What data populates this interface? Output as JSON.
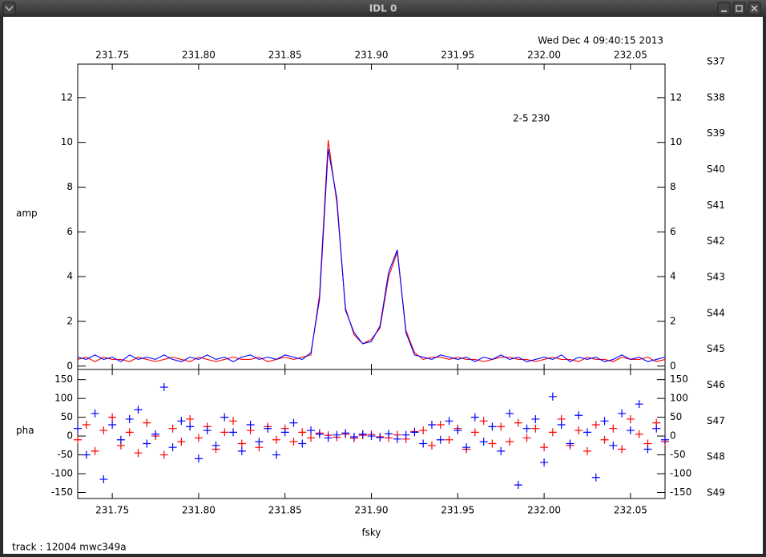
{
  "window": {
    "title": "IDL 0"
  },
  "header": {
    "date": "Wed Dec  4 09:40:15 2013"
  },
  "footer": {
    "track": "track : 12004  mwc349a"
  },
  "channels": [
    {
      "name": "S37",
      "color": "#cc0000"
    },
    {
      "name": "S38",
      "color": "#cc0000"
    },
    {
      "name": "S39",
      "color": "#cc0000"
    },
    {
      "name": "S40",
      "color": "#cc0000"
    },
    {
      "name": "S41",
      "color": "#cc0000"
    },
    {
      "name": "S42",
      "color": "#cc0000"
    },
    {
      "name": "S43",
      "color": "#cc0000"
    },
    {
      "name": "S44",
      "color": "#cc0000"
    },
    {
      "name": "S45",
      "color": "#cc0000"
    },
    {
      "name": "S46",
      "color": "#cc0000"
    },
    {
      "name": "S47",
      "color": "#cc0000"
    },
    {
      "name": "S48",
      "color": "#cc0000"
    },
    {
      "name": "S49",
      "color": "#0000cc"
    }
  ],
  "chart_data": [
    {
      "type": "line",
      "ylabel": "amp",
      "annotation": "2-5 230",
      "xlim": [
        231.73,
        232.07
      ],
      "xticks": [
        231.75,
        {
          "value": 231.8,
          "label": "231.80"
        },
        231.85,
        {
          "value": 231.9,
          "label": "231.90"
        },
        231.95,
        {
          "value": 232.0,
          "label": "232.00"
        },
        232.05
      ],
      "ylim": [
        -0.15,
        13.5
      ],
      "yticks": [
        0,
        2,
        4,
        6,
        8,
        10,
        12
      ],
      "x": [
        231.73,
        231.735,
        231.74,
        231.745,
        231.75,
        231.755,
        231.76,
        231.765,
        231.77,
        231.775,
        231.78,
        231.785,
        231.79,
        231.795,
        231.8,
        231.805,
        231.81,
        231.815,
        231.82,
        231.825,
        231.83,
        231.835,
        231.84,
        231.845,
        231.85,
        231.855,
        231.86,
        231.865,
        231.87,
        231.875,
        231.88,
        231.885,
        231.89,
        231.895,
        231.9,
        231.905,
        231.91,
        231.915,
        231.92,
        231.925,
        231.93,
        231.935,
        231.94,
        231.945,
        231.95,
        231.955,
        231.96,
        231.965,
        231.97,
        231.975,
        231.98,
        231.985,
        231.99,
        231.995,
        232.0,
        232.005,
        232.01,
        232.015,
        232.02,
        232.025,
        232.03,
        232.035,
        232.04,
        232.045,
        232.05,
        232.055,
        232.06,
        232.065,
        232.07
      ],
      "series": [
        {
          "color": "#ff0000",
          "values": [
            0.3,
            0.4,
            0.2,
            0.4,
            0.3,
            0.3,
            0.2,
            0.4,
            0.3,
            0.2,
            0.3,
            0.4,
            0.3,
            0.2,
            0.4,
            0.3,
            0.2,
            0.3,
            0.4,
            0.3,
            0.3,
            0.4,
            0.2,
            0.3,
            0.4,
            0.3,
            0.4,
            0.5,
            3.2,
            10.1,
            7.3,
            2.6,
            1.4,
            1.0,
            1.2,
            1.7,
            4.0,
            5.1,
            1.6,
            0.6,
            0.3,
            0.4,
            0.4,
            0.3,
            0.4,
            0.3,
            0.3,
            0.2,
            0.3,
            0.4,
            0.4,
            0.3,
            0.3,
            0.2,
            0.3,
            0.4,
            0.3,
            0.3,
            0.2,
            0.4,
            0.3,
            0.3,
            0.2,
            0.4,
            0.3,
            0.3,
            0.4,
            0.2,
            0.3
          ]
        },
        {
          "color": "#0000ff",
          "values": [
            0.4,
            0.3,
            0.5,
            0.3,
            0.4,
            0.2,
            0.5,
            0.3,
            0.4,
            0.3,
            0.5,
            0.3,
            0.2,
            0.4,
            0.3,
            0.5,
            0.3,
            0.4,
            0.2,
            0.4,
            0.5,
            0.3,
            0.4,
            0.3,
            0.5,
            0.4,
            0.3,
            0.6,
            3.0,
            9.7,
            7.5,
            2.5,
            1.5,
            1.0,
            1.1,
            1.8,
            4.2,
            5.2,
            1.5,
            0.5,
            0.4,
            0.3,
            0.5,
            0.4,
            0.3,
            0.4,
            0.2,
            0.4,
            0.3,
            0.5,
            0.3,
            0.4,
            0.2,
            0.3,
            0.4,
            0.3,
            0.5,
            0.2,
            0.4,
            0.3,
            0.4,
            0.2,
            0.3,
            0.5,
            0.3,
            0.4,
            0.2,
            0.3,
            0.4
          ]
        }
      ]
    },
    {
      "type": "scatter",
      "ylabel": "pha",
      "xlabel": "fsky",
      "xlim": [
        231.73,
        232.07
      ],
      "xticks": [
        231.75,
        {
          "value": 231.8,
          "label": "231.80"
        },
        231.85,
        {
          "value": 231.9,
          "label": "231.90"
        },
        231.95,
        {
          "value": 232.0,
          "label": "232.00"
        },
        232.05
      ],
      "ylim": [
        -166,
        177
      ],
      "yticks": [
        -150,
        -100,
        -50,
        0,
        50,
        100,
        150
      ],
      "x": [
        231.73,
        231.735,
        231.74,
        231.745,
        231.75,
        231.755,
        231.76,
        231.765,
        231.77,
        231.775,
        231.78,
        231.785,
        231.79,
        231.795,
        231.8,
        231.805,
        231.81,
        231.815,
        231.82,
        231.825,
        231.83,
        231.835,
        231.84,
        231.845,
        231.85,
        231.855,
        231.86,
        231.865,
        231.87,
        231.875,
        231.88,
        231.885,
        231.89,
        231.895,
        231.9,
        231.905,
        231.91,
        231.915,
        231.92,
        231.925,
        231.93,
        231.935,
        231.94,
        231.945,
        231.95,
        231.955,
        231.96,
        231.965,
        231.97,
        231.975,
        231.98,
        231.985,
        231.99,
        231.995,
        232.0,
        232.005,
        232.01,
        232.015,
        232.02,
        232.025,
        232.03,
        232.035,
        232.04,
        232.045,
        232.05,
        232.055,
        232.06,
        232.065,
        232.07
      ],
      "series": [
        {
          "color": "#ff0000",
          "values": [
            -10,
            30,
            -40,
            15,
            50,
            -25,
            10,
            -45,
            35,
            0,
            -50,
            20,
            -15,
            45,
            -5,
            25,
            -35,
            10,
            40,
            -20,
            15,
            -30,
            25,
            -10,
            20,
            -15,
            10,
            -5,
            8,
            2,
            -3,
            5,
            -6,
            2,
            4,
            -2,
            -5,
            3,
            -8,
            12,
            15,
            -25,
            30,
            -10,
            20,
            -35,
            10,
            40,
            -20,
            25,
            -15,
            35,
            -5,
            20,
            -30,
            10,
            45,
            -25,
            15,
            -40,
            30,
            -10,
            20,
            -35,
            45,
            5,
            -20,
            35,
            -15
          ]
        },
        {
          "color": "#0000ff",
          "values": [
            20,
            -50,
            60,
            -115,
            30,
            -10,
            45,
            70,
            -20,
            5,
            130,
            -30,
            40,
            25,
            -60,
            15,
            -25,
            50,
            10,
            -40,
            30,
            -15,
            20,
            -50,
            10,
            35,
            -20,
            15,
            5,
            -5,
            3,
            8,
            -2,
            5,
            0,
            -4,
            6,
            -8,
            3,
            10,
            -20,
            30,
            -10,
            40,
            15,
            -30,
            50,
            -15,
            25,
            -40,
            60,
            -130,
            20,
            45,
            -70,
            105,
            30,
            -20,
            55,
            10,
            -110,
            40,
            -25,
            60,
            15,
            85,
            -35,
            20,
            -10
          ]
        }
      ]
    }
  ]
}
